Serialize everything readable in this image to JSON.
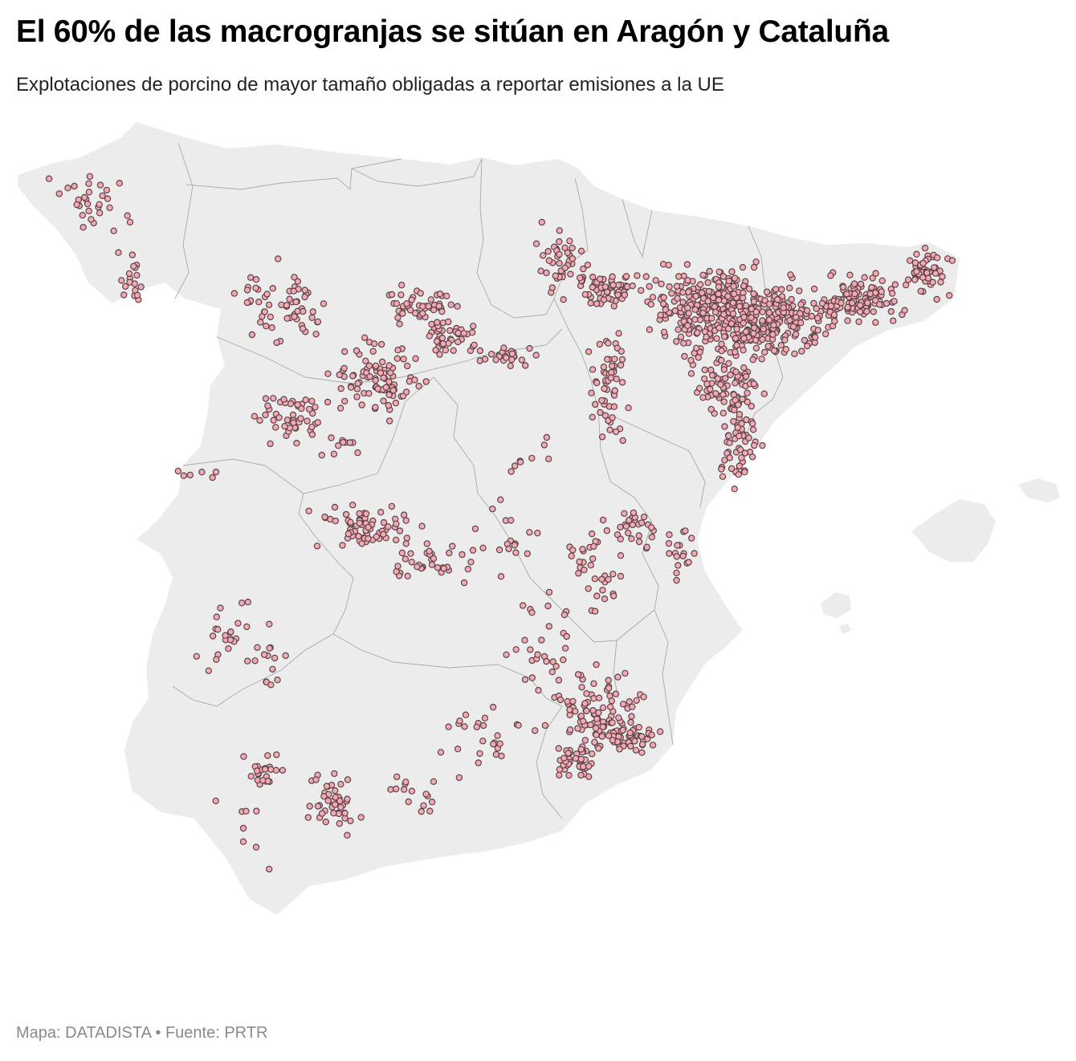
{
  "title": "El 60% de las macrogranjas se sitúan en Aragón y Cataluña",
  "subtitle": "Explotaciones de porcino de mayor tamaño obligadas a reportar emisiones a la UE",
  "credit": "Mapa: DATADISTA • Fuente: PRTR",
  "colors": {
    "land": "#ececec",
    "borders": "#a8a8a8",
    "farm_fill": "#f4a9b3",
    "farm_stroke": "#5a4448"
  }
}
